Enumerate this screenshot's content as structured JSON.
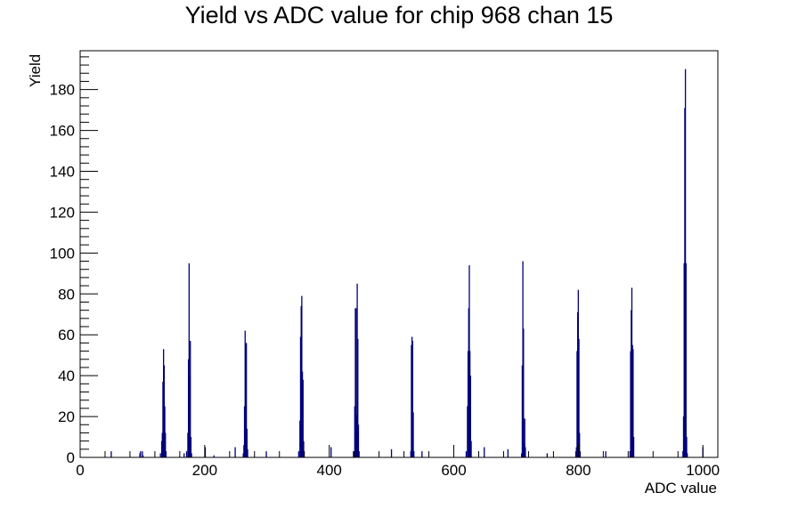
{
  "chart_data": {
    "type": "bar",
    "title": "Yield vs ADC value for chip 968 chan 15",
    "xlabel": "ADC value",
    "ylabel": "Yield",
    "xlim": [
      0,
      1024
    ],
    "ylim": [
      0,
      199
    ],
    "x_ticks": [
      0,
      200,
      400,
      600,
      800,
      1000
    ],
    "y_ticks": [
      0,
      20,
      40,
      60,
      80,
      100,
      120,
      140,
      160,
      180
    ],
    "grid": false,
    "legend": "none",
    "colors": {
      "bars": "#00007a",
      "axis": "#000000"
    },
    "bins": [
      {
        "x": 49,
        "y": 3
      },
      {
        "x": 95,
        "y": 2
      },
      {
        "x": 96,
        "y": 3
      },
      {
        "x": 99,
        "y": 3
      },
      {
        "x": 100,
        "y": 1
      },
      {
        "x": 128,
        "y": 2
      },
      {
        "x": 130,
        "y": 8
      },
      {
        "x": 131,
        "y": 12
      },
      {
        "x": 132,
        "y": 37
      },
      {
        "x": 133,
        "y": 53
      },
      {
        "x": 134,
        "y": 45
      },
      {
        "x": 135,
        "y": 25
      },
      {
        "x": 136,
        "y": 12
      },
      {
        "x": 137,
        "y": 3
      },
      {
        "x": 166,
        "y": 2
      },
      {
        "x": 170,
        "y": 3
      },
      {
        "x": 172,
        "y": 12
      },
      {
        "x": 173,
        "y": 48
      },
      {
        "x": 174,
        "y": 95
      },
      {
        "x": 175,
        "y": 40
      },
      {
        "x": 176,
        "y": 57
      },
      {
        "x": 177,
        "y": 10
      },
      {
        "x": 178,
        "y": 2
      },
      {
        "x": 200,
        "y": 5
      },
      {
        "x": 214,
        "y": 1
      },
      {
        "x": 248,
        "y": 5
      },
      {
        "x": 261,
        "y": 2
      },
      {
        "x": 262,
        "y": 6
      },
      {
        "x": 263,
        "y": 25
      },
      {
        "x": 264,
        "y": 62
      },
      {
        "x": 265,
        "y": 55
      },
      {
        "x": 266,
        "y": 56
      },
      {
        "x": 267,
        "y": 14
      },
      {
        "x": 268,
        "y": 4
      },
      {
        "x": 298,
        "y": 3
      },
      {
        "x": 350,
        "y": 3
      },
      {
        "x": 352,
        "y": 18
      },
      {
        "x": 353,
        "y": 59
      },
      {
        "x": 354,
        "y": 74
      },
      {
        "x": 355,
        "y": 79
      },
      {
        "x": 356,
        "y": 42
      },
      {
        "x": 357,
        "y": 38
      },
      {
        "x": 358,
        "y": 8
      },
      {
        "x": 402,
        "y": 5
      },
      {
        "x": 438,
        "y": 3
      },
      {
        "x": 440,
        "y": 25
      },
      {
        "x": 441,
        "y": 73
      },
      {
        "x": 442,
        "y": 73
      },
      {
        "x": 443,
        "y": 21
      },
      {
        "x": 444,
        "y": 85
      },
      {
        "x": 445,
        "y": 58
      },
      {
        "x": 446,
        "y": 16
      },
      {
        "x": 447,
        "y": 3
      },
      {
        "x": 499,
        "y": 4
      },
      {
        "x": 530,
        "y": 3
      },
      {
        "x": 531,
        "y": 55
      },
      {
        "x": 532,
        "y": 59
      },
      {
        "x": 533,
        "y": 57
      },
      {
        "x": 534,
        "y": 22
      },
      {
        "x": 535,
        "y": 3
      },
      {
        "x": 548,
        "y": 3
      },
      {
        "x": 619,
        "y": 3
      },
      {
        "x": 621,
        "y": 25
      },
      {
        "x": 622,
        "y": 52
      },
      {
        "x": 623,
        "y": 73
      },
      {
        "x": 624,
        "y": 94
      },
      {
        "x": 625,
        "y": 52
      },
      {
        "x": 626,
        "y": 40
      },
      {
        "x": 627,
        "y": 8
      },
      {
        "x": 648,
        "y": 5
      },
      {
        "x": 686,
        "y": 4
      },
      {
        "x": 708,
        "y": 2
      },
      {
        "x": 709,
        "y": 45
      },
      {
        "x": 710,
        "y": 96
      },
      {
        "x": 711,
        "y": 63
      },
      {
        "x": 712,
        "y": 7
      },
      {
        "x": 713,
        "y": 19
      },
      {
        "x": 714,
        "y": 5
      },
      {
        "x": 749,
        "y": 2
      },
      {
        "x": 795,
        "y": 3
      },
      {
        "x": 796,
        "y": 5
      },
      {
        "x": 797,
        "y": 52
      },
      {
        "x": 798,
        "y": 71
      },
      {
        "x": 799,
        "y": 82
      },
      {
        "x": 800,
        "y": 58
      },
      {
        "x": 801,
        "y": 12
      },
      {
        "x": 802,
        "y": 3
      },
      {
        "x": 843,
        "y": 3
      },
      {
        "x": 882,
        "y": 3
      },
      {
        "x": 883,
        "y": 52
      },
      {
        "x": 884,
        "y": 72
      },
      {
        "x": 885,
        "y": 83
      },
      {
        "x": 886,
        "y": 55
      },
      {
        "x": 887,
        "y": 53
      },
      {
        "x": 888,
        "y": 10
      },
      {
        "x": 967,
        "y": 3
      },
      {
        "x": 968,
        "y": 20
      },
      {
        "x": 969,
        "y": 95
      },
      {
        "x": 970,
        "y": 171
      },
      {
        "x": 971,
        "y": 190
      },
      {
        "x": 972,
        "y": 95
      },
      {
        "x": 973,
        "y": 10
      },
      {
        "x": 974,
        "y": 2
      },
      {
        "x": 999,
        "y": 5
      }
    ]
  }
}
